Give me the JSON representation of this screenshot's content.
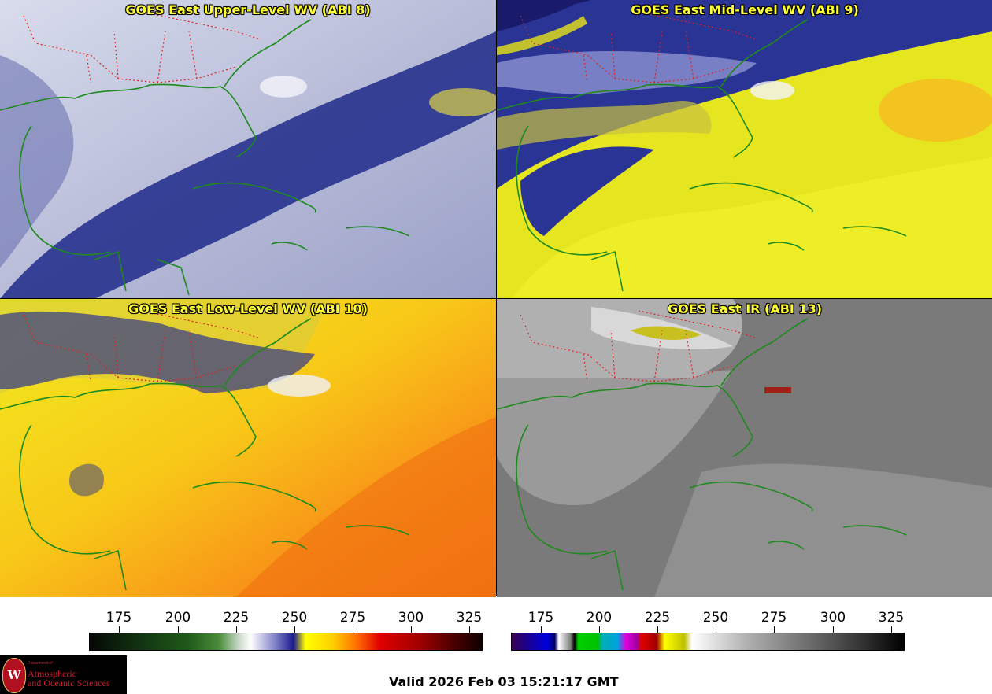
{
  "panels": [
    {
      "id": "upper",
      "title": "GOES East Upper-Level WV (ABI 8)",
      "style": "upper"
    },
    {
      "id": "mid",
      "title": "GOES East Mid-Level WV (ABI 9)",
      "style": "mid"
    },
    {
      "id": "low",
      "title": "GOES East Low-Level WV (ABI 10)",
      "style": "low"
    },
    {
      "id": "ir",
      "title": "GOES East IR (ABI 13)",
      "style": "ir"
    }
  ],
  "colorbars": {
    "wv": {
      "ticks": [
        "175",
        "200",
        "225",
        "250",
        "275",
        "300",
        "325"
      ]
    },
    "ir": {
      "ticks": [
        "175",
        "200",
        "225",
        "250",
        "275",
        "300",
        "325"
      ]
    }
  },
  "footer": {
    "valid_text": "Valid 2026 Feb 03 15:21:17 GMT",
    "logo_dept": "Department of",
    "logo_line1": "Atmospheric",
    "logo_line2": "and Oceanic Sciences",
    "logo_letter": "W"
  },
  "colors": {
    "coastline": "#1e8a1e",
    "state_borders": "#e02020",
    "title_text": "#ffff33"
  }
}
